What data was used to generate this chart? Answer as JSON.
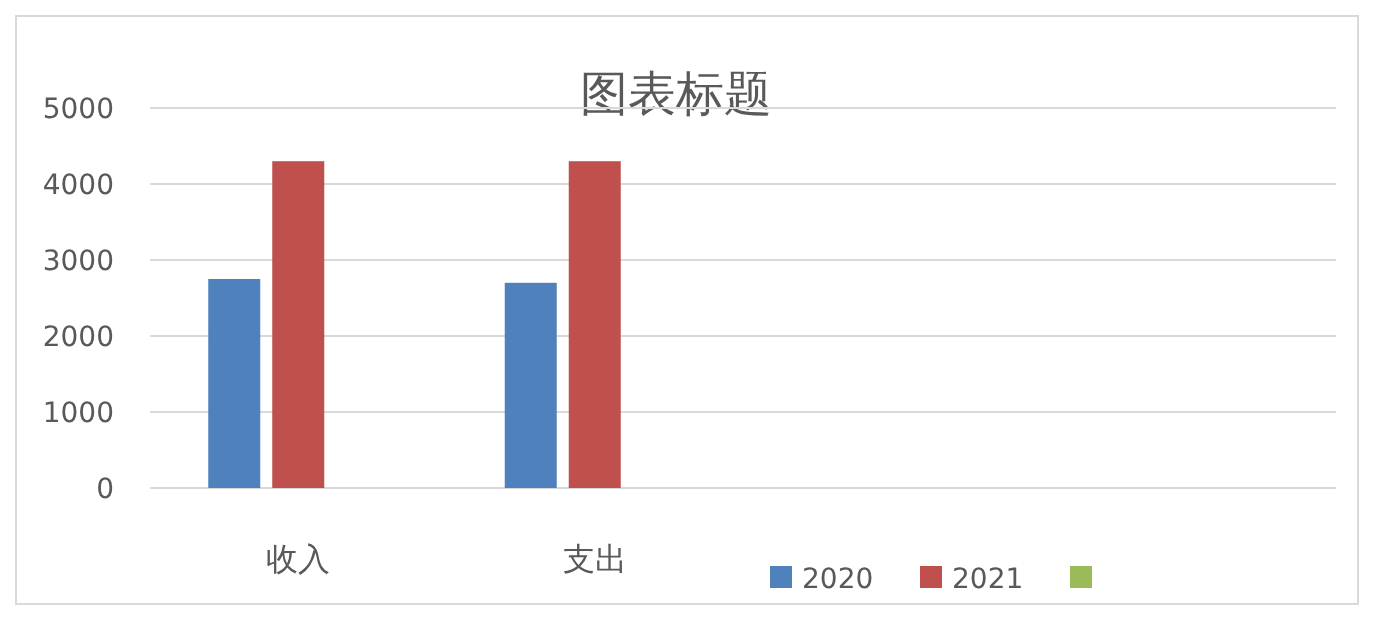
{
  "chart_data": {
    "type": "bar",
    "title": "图表标题",
    "categories": [
      "收入",
      "支出",
      null,
      null
    ],
    "series": [
      {
        "name": "2020",
        "color": "#4f81bd",
        "values": [
          2750,
          2700,
          null,
          null
        ]
      },
      {
        "name": "2021",
        "color": "#c0504d",
        "values": [
          4300,
          4300,
          null,
          null
        ]
      },
      {
        "color": "#9bbb59",
        "values": [
          null,
          null,
          null,
          null
        ]
      }
    ],
    "ylim": [
      0,
      5000
    ],
    "yticks": [
      0,
      1000,
      2000,
      3000,
      4000,
      5000
    ],
    "grid": "y",
    "legend": "bottom"
  }
}
